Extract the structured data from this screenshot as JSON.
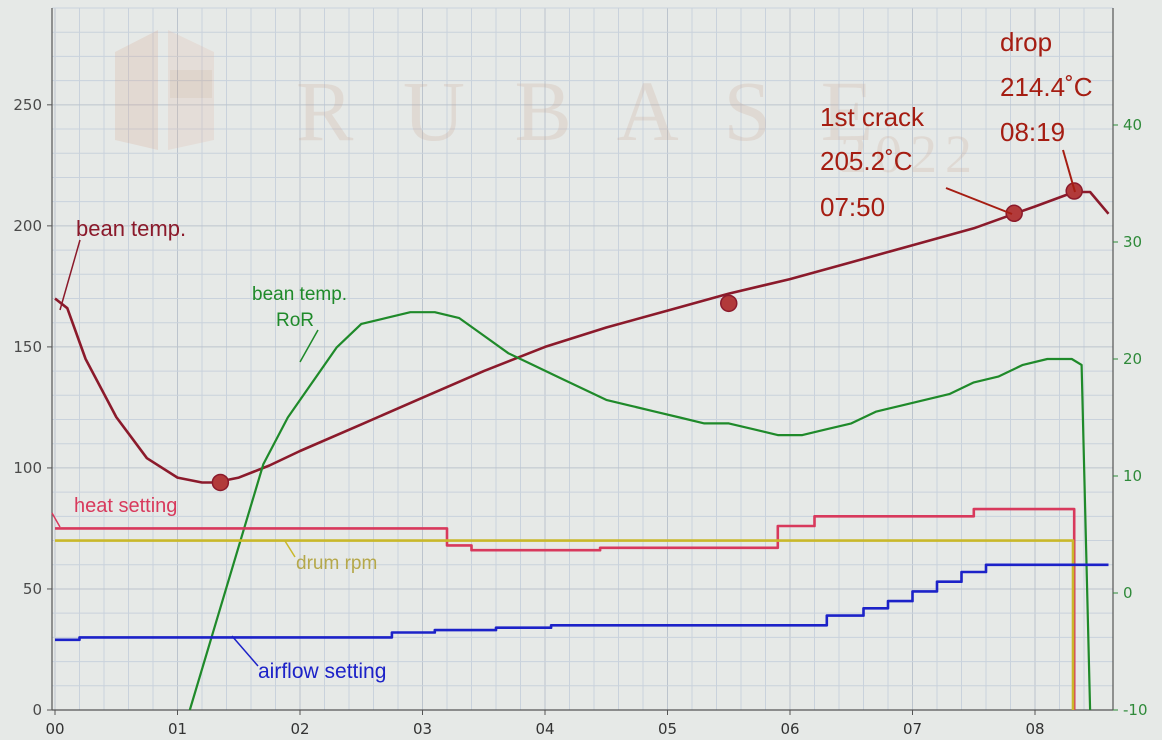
{
  "watermark": {
    "text": "R U B A S E",
    "year": "2022"
  },
  "chart_data": {
    "type": "line",
    "x_unit": "min",
    "x_ticks": [
      "00",
      "01",
      "02",
      "03",
      "04",
      "05",
      "06",
      "07",
      "08"
    ],
    "xlim": [
      0,
      8.6
    ],
    "y_left": {
      "ylim": [
        0,
        290
      ],
      "ticks": [
        "0",
        "50",
        "100",
        "150",
        "200",
        "250"
      ],
      "tick_values": [
        0,
        50,
        100,
        150,
        200,
        250
      ]
    },
    "y_right": {
      "ylim": [
        -10,
        50
      ],
      "ticks": [
        "-10",
        "0",
        "10",
        "20",
        "30",
        "40"
      ],
      "tick_values": [
        -10,
        0,
        10,
        20,
        30,
        40
      ]
    },
    "grid": true,
    "series": [
      {
        "name": "bean temp.",
        "axis": "left",
        "color": "#8b1a2b",
        "x": [
          0,
          0.1,
          0.25,
          0.5,
          0.75,
          1.0,
          1.2,
          1.3,
          1.5,
          1.75,
          2.0,
          2.5,
          3.0,
          3.5,
          4.0,
          4.5,
          5.0,
          5.5,
          6.0,
          6.5,
          7.0,
          7.5,
          7.83,
          8.0,
          8.32,
          8.45,
          8.6
        ],
        "y": [
          170,
          166,
          145,
          121,
          104,
          96,
          94,
          94,
          96,
          101,
          107,
          118,
          129,
          140,
          150,
          158,
          165,
          172,
          178,
          185,
          192,
          199,
          205,
          208,
          214,
          214,
          205
        ]
      },
      {
        "name": "bean temp. RoR",
        "axis": "right",
        "color": "#1f8a2a",
        "x": [
          1.1,
          1.3,
          1.5,
          1.7,
          1.9,
          2.1,
          2.3,
          2.5,
          2.7,
          2.9,
          3.1,
          3.3,
          3.5,
          3.7,
          3.9,
          4.1,
          4.3,
          4.5,
          4.7,
          4.9,
          5.1,
          5.3,
          5.5,
          5.7,
          5.9,
          6.1,
          6.3,
          6.5,
          6.7,
          6.9,
          7.1,
          7.3,
          7.5,
          7.7,
          7.9,
          8.1,
          8.3,
          8.38,
          8.45
        ],
        "y": [
          -10,
          -3,
          4,
          11,
          15,
          18,
          21,
          23,
          23.5,
          24,
          24,
          23.5,
          22,
          20.5,
          19.5,
          18.5,
          17.5,
          16.5,
          16,
          15.5,
          15,
          14.5,
          14.5,
          14,
          13.5,
          13.5,
          14,
          14.5,
          15.5,
          16,
          16.5,
          17,
          18,
          18.5,
          19.5,
          20,
          20,
          19.5,
          -10
        ]
      },
      {
        "name": "heat setting",
        "axis": "left",
        "color": "#d8395c",
        "x": [
          0,
          3.15,
          3.2,
          3.4,
          4.4,
          4.45,
          5.85,
          5.9,
          6.15,
          6.2,
          7.45,
          7.5,
          8.3,
          8.32
        ],
        "y": [
          75,
          75,
          68,
          66,
          66,
          67,
          67,
          76,
          76,
          80,
          80,
          83,
          83,
          0
        ]
      },
      {
        "name": "drum rpm",
        "axis": "left",
        "color": "#c9b82a",
        "x": [
          0,
          8.3,
          8.31
        ],
        "y": [
          70,
          70,
          0
        ]
      },
      {
        "name": "airflow setting",
        "axis": "left",
        "color": "#1c22c8",
        "x": [
          0,
          0.2,
          2.7,
          2.75,
          3.1,
          3.6,
          4.05,
          6.0,
          6.3,
          6.6,
          6.8,
          7.0,
          7.2,
          7.4,
          7.6,
          8.6
        ],
        "y": [
          29,
          30,
          30,
          32,
          33,
          34,
          35,
          35,
          39,
          42,
          45,
          49,
          53,
          57,
          60,
          60
        ]
      }
    ],
    "markers": [
      {
        "x": 1.35,
        "y": 94,
        "axis": "left"
      },
      {
        "x": 5.5,
        "y": 168,
        "axis": "left"
      },
      {
        "x": 7.83,
        "y": 205.2,
        "axis": "left"
      },
      {
        "x": 8.32,
        "y": 214.4,
        "axis": "left"
      }
    ],
    "annotations": {
      "bean_temp": "bean temp.",
      "ror_line1": "bean temp.",
      "ror_line2": "RoR",
      "heat": "heat setting",
      "drum": "drum rpm",
      "airflow": "airflow setting",
      "first_crack_title": "1st crack",
      "first_crack_temp": "205.2˚C",
      "first_crack_time": "07:50",
      "drop_title": "drop",
      "drop_temp": "214.4˚C",
      "drop_time": "08:19"
    }
  }
}
